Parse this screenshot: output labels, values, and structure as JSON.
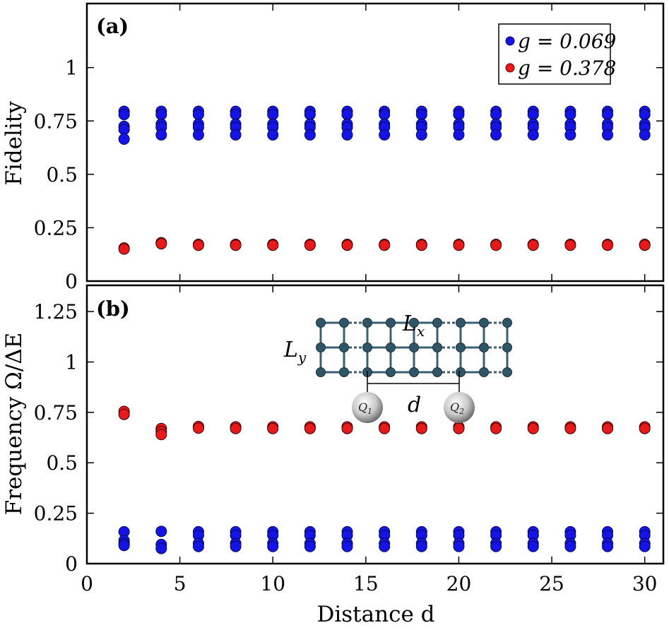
{
  "colors": {
    "blue": "#1414e6",
    "red": "#e61a1a"
  },
  "chart_data": [
    {
      "panel": "(a)",
      "type": "scatter",
      "ylabel": "Fidelity",
      "xlabel": "",
      "xlim": [
        0,
        31
      ],
      "ylim": [
        0,
        1.3
      ],
      "xticks": [
        0,
        5,
        10,
        15,
        20,
        25,
        30
      ],
      "yticks": [
        0,
        0.25,
        0.5,
        0.75,
        1
      ],
      "ytick_labels": [
        "0",
        "0.25",
        "0.5",
        "0.75",
        "1"
      ],
      "legend": {
        "placement": "top-right",
        "entries": [
          "g = 0.069",
          "g = 0.378"
        ]
      },
      "series": [
        {
          "name": "g = 0.069",
          "color": "blue",
          "x": [
            2,
            4,
            6,
            8,
            10,
            12,
            14,
            16,
            18,
            20,
            22,
            24,
            26,
            28,
            30
          ],
          "y_groups": [
            [
              0.795,
              0.78,
              0.725,
              0.71,
              0.665
            ],
            [
              0.795,
              0.78,
              0.735,
              0.72,
              0.685
            ],
            [
              0.795,
              0.78,
              0.735,
              0.72,
              0.685
            ],
            [
              0.795,
              0.78,
              0.735,
              0.72,
              0.685
            ],
            [
              0.795,
              0.78,
              0.735,
              0.72,
              0.685
            ],
            [
              0.795,
              0.78,
              0.735,
              0.72,
              0.685
            ],
            [
              0.795,
              0.78,
              0.735,
              0.72,
              0.685
            ],
            [
              0.795,
              0.78,
              0.735,
              0.72,
              0.685
            ],
            [
              0.795,
              0.78,
              0.735,
              0.72,
              0.685
            ],
            [
              0.795,
              0.78,
              0.735,
              0.72,
              0.685
            ],
            [
              0.795,
              0.78,
              0.735,
              0.72,
              0.685
            ],
            [
              0.795,
              0.78,
              0.735,
              0.72,
              0.685
            ],
            [
              0.795,
              0.78,
              0.735,
              0.72,
              0.685
            ],
            [
              0.795,
              0.78,
              0.735,
              0.72,
              0.685
            ],
            [
              0.795,
              0.78,
              0.735,
              0.72,
              0.685
            ]
          ]
        },
        {
          "name": "g = 0.378",
          "color": "red",
          "x": [
            2,
            4,
            6,
            8,
            10,
            12,
            14,
            16,
            18,
            20,
            22,
            24,
            26,
            28,
            30
          ],
          "y_groups": [
            [
              0.155,
              0.15
            ],
            [
              0.18,
              0.175
            ],
            [
              0.172,
              0.168
            ],
            [
              0.172,
              0.168
            ],
            [
              0.172,
              0.168
            ],
            [
              0.172,
              0.168
            ],
            [
              0.172,
              0.168
            ],
            [
              0.172,
              0.168
            ],
            [
              0.172,
              0.168
            ],
            [
              0.172,
              0.168
            ],
            [
              0.172,
              0.168
            ],
            [
              0.172,
              0.168
            ],
            [
              0.172,
              0.168
            ],
            [
              0.172,
              0.168
            ],
            [
              0.172,
              0.168
            ]
          ]
        }
      ]
    },
    {
      "panel": "(b)",
      "type": "scatter",
      "ylabel": "Frequency Ω/ΔE",
      "xlabel": "Distance d",
      "xlim": [
        0,
        31
      ],
      "ylim": [
        0,
        1.38
      ],
      "xticks": [
        0,
        5,
        10,
        15,
        20,
        25,
        30
      ],
      "xtick_labels": [
        "0",
        "5",
        "10",
        "15",
        "20",
        "25",
        "30"
      ],
      "yticks": [
        0,
        0.25,
        0.5,
        0.75,
        1,
        1.25
      ],
      "ytick_labels": [
        "0",
        "0.25",
        "0.5",
        "0.75",
        "1",
        "1.25"
      ],
      "series": [
        {
          "name": "g = 0.378",
          "color": "red",
          "x": [
            2,
            4,
            6,
            8,
            10,
            12,
            14,
            16,
            18,
            20,
            22,
            24,
            26,
            28,
            30
          ],
          "y_groups": [
            [
              0.755,
              0.74
            ],
            [
              0.67,
              0.655,
              0.64
            ],
            [
              0.68,
              0.672
            ],
            [
              0.678,
              0.67
            ],
            [
              0.678,
              0.67
            ],
            [
              0.678,
              0.67
            ],
            [
              0.678,
              0.67
            ],
            [
              0.678,
              0.67
            ],
            [
              0.678,
              0.67
            ],
            [
              0.678,
              0.67
            ],
            [
              0.678,
              0.67
            ],
            [
              0.678,
              0.67
            ],
            [
              0.678,
              0.67
            ],
            [
              0.678,
              0.67
            ],
            [
              0.678,
              0.67
            ]
          ]
        },
        {
          "name": "g = 0.069",
          "color": "blue",
          "x": [
            2,
            4,
            6,
            8,
            10,
            12,
            14,
            16,
            18,
            20,
            22,
            24,
            26,
            28,
            30
          ],
          "y_groups": [
            [
              0.158,
              0.115,
              0.1,
              0.09
            ],
            [
              0.16,
              0.095,
              0.075
            ],
            [
              0.158,
              0.14,
              0.1,
              0.085
            ],
            [
              0.158,
              0.14,
              0.1,
              0.085
            ],
            [
              0.158,
              0.14,
              0.1,
              0.085
            ],
            [
              0.158,
              0.14,
              0.1,
              0.085
            ],
            [
              0.158,
              0.14,
              0.1,
              0.085
            ],
            [
              0.158,
              0.14,
              0.1,
              0.085
            ],
            [
              0.158,
              0.14,
              0.1,
              0.085
            ],
            [
              0.158,
              0.14,
              0.1,
              0.085
            ],
            [
              0.158,
              0.14,
              0.1,
              0.085
            ],
            [
              0.158,
              0.14,
              0.1,
              0.085
            ],
            [
              0.158,
              0.14,
              0.1,
              0.085
            ],
            [
              0.158,
              0.14,
              0.1,
              0.085
            ],
            [
              0.158,
              0.14,
              0.1,
              0.085
            ]
          ]
        }
      ],
      "inset": {
        "description_labels": {
          "lx": "L",
          "lx_sub": "x",
          "ly": "L",
          "ly_sub": "y",
          "d": "d",
          "q1": "Q",
          "q1_sub": "1",
          "q2": "Q",
          "q2_sub": "2"
        },
        "lattice_cols": 9,
        "lattice_rows": 3
      }
    }
  ]
}
